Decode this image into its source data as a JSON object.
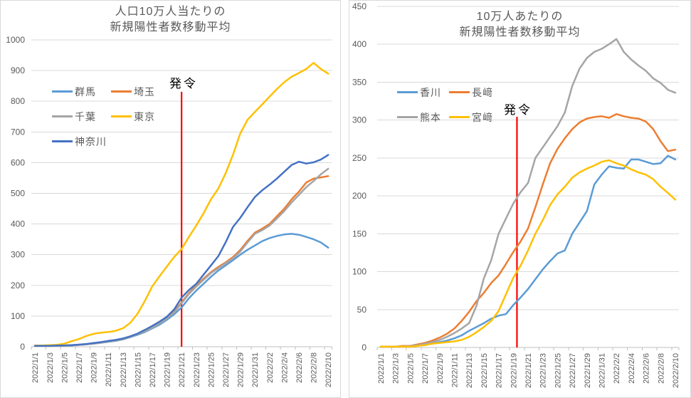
{
  "style": {
    "gridline_color": "#D9D9D9",
    "axis_color": "#BFBFBF",
    "axis_text_color": "#595959",
    "title_color": "#595959",
    "decree_line_color": "#FF0000",
    "panel_border_color": "#D9D9D9",
    "background": "#FFFFFF"
  },
  "chart_data": [
    {
      "type": "line",
      "title": "人口10万人当たりの 新規陽性者数移動平均",
      "title_lines": [
        "人口10万人当たりの",
        "新規陽性者数移動平均"
      ],
      "legend_position": "inside-top-left",
      "grid": true,
      "y_axis": {
        "min": 0,
        "max": 1000,
        "step": 100,
        "tick_labels": [
          "0",
          "100",
          "200",
          "300",
          "400",
          "500",
          "600",
          "700",
          "800",
          "900",
          "1000"
        ]
      },
      "x_axis": {
        "tick_labels": [
          "2022/1/1",
          "2022/1/3",
          "2022/1/5",
          "2022/1/7",
          "2022/1/9",
          "2022/1/11",
          "2022/1/13",
          "2022/1/15",
          "2022/1/17",
          "2022/1/19",
          "2022/1/21",
          "2022/1/23",
          "2022/1/25",
          "2022/1/27",
          "2022/1/29",
          "2022/1/31",
          "2022/2/2",
          "2022/2/4",
          "2022/2/6",
          "2022/2/8",
          "2022/2/10"
        ],
        "dates": [
          "2022/1/1",
          "2022/1/2",
          "2022/1/3",
          "2022/1/4",
          "2022/1/5",
          "2022/1/6",
          "2022/1/7",
          "2022/1/8",
          "2022/1/9",
          "2022/1/10",
          "2022/1/11",
          "2022/1/12",
          "2022/1/13",
          "2022/1/14",
          "2022/1/15",
          "2022/1/16",
          "2022/1/17",
          "2022/1/18",
          "2022/1/19",
          "2022/1/20",
          "2022/1/21",
          "2022/1/22",
          "2022/1/23",
          "2022/1/24",
          "2022/1/25",
          "2022/1/26",
          "2022/1/27",
          "2022/1/28",
          "2022/1/29",
          "2022/1/30",
          "2022/1/31",
          "2022/2/1",
          "2022/2/2",
          "2022/2/3",
          "2022/2/4",
          "2022/2/5",
          "2022/2/6",
          "2022/2/7",
          "2022/2/8",
          "2022/2/9",
          "2022/2/10"
        ]
      },
      "vline": {
        "label": "発令",
        "date": "2022/1/21",
        "day_index": 20,
        "color": "#FF0000"
      },
      "series": [
        {
          "name": "群馬",
          "color": "#5B9BD5",
          "values": [
            3,
            3,
            3,
            3,
            4,
            4,
            6,
            8,
            10,
            13,
            16,
            19,
            24,
            31,
            39,
            48,
            60,
            72,
            88,
            106,
            128,
            158,
            183,
            205,
            228,
            248,
            265,
            282,
            300,
            316,
            330,
            344,
            354,
            361,
            366,
            368,
            365,
            358,
            350,
            340,
            323
          ]
        },
        {
          "name": "埼玉",
          "color": "#ED7D31",
          "values": [
            3,
            3,
            3,
            3,
            4,
            5,
            6,
            8,
            11,
            14,
            18,
            21,
            26,
            33,
            42,
            52,
            64,
            78,
            95,
            115,
            145,
            175,
            200,
            222,
            243,
            260,
            275,
            292,
            315,
            345,
            372,
            385,
            400,
            425,
            450,
            480,
            505,
            535,
            548,
            552,
            556
          ]
        },
        {
          "name": "千葉",
          "color": "#A5A5A5",
          "values": [
            3,
            3,
            3,
            3,
            4,
            5,
            6,
            8,
            10,
            13,
            17,
            20,
            25,
            32,
            41,
            50,
            62,
            76,
            92,
            112,
            142,
            172,
            196,
            218,
            240,
            256,
            272,
            288,
            310,
            340,
            368,
            380,
            395,
            418,
            442,
            470,
            495,
            520,
            540,
            562,
            580
          ]
        },
        {
          "name": "東京",
          "color": "#FFC000",
          "values": [
            4,
            4,
            5,
            6,
            10,
            18,
            25,
            35,
            42,
            46,
            48,
            52,
            60,
            78,
            108,
            150,
            197,
            230,
            262,
            293,
            318,
            358,
            395,
            435,
            480,
            515,
            565,
            625,
            695,
            740,
            765,
            790,
            815,
            840,
            862,
            880,
            892,
            905,
            925,
            905,
            890
          ]
        },
        {
          "name": "神奈川",
          "color": "#4472C4",
          "values": [
            3,
            3,
            3,
            4,
            4,
            5,
            7,
            9,
            12,
            15,
            19,
            22,
            27,
            34,
            43,
            55,
            68,
            82,
            98,
            122,
            160,
            185,
            205,
            235,
            265,
            295,
            340,
            390,
            420,
            455,
            488,
            510,
            528,
            548,
            570,
            592,
            603,
            597,
            601,
            610,
            625
          ]
        }
      ]
    },
    {
      "type": "line",
      "title": "10万人あたりの 新規陽性者数移動平均",
      "title_lines": [
        "10万人あたりの",
        "新規陽性者数移動平均"
      ],
      "legend_position": "inside-top-left",
      "grid": true,
      "y_axis": {
        "min": 0,
        "max": 450,
        "step": 50,
        "tick_labels": [
          "0",
          "50",
          "100",
          "150",
          "200",
          "250",
          "300",
          "350",
          "400",
          "450"
        ]
      },
      "x_axis": {
        "tick_labels": [
          "2022/1/1",
          "2022/1/3",
          "2022/1/5",
          "2022/1/7",
          "2022/1/9",
          "2022/1/11",
          "2022/1/13",
          "2022/1/15",
          "2022/1/17",
          "2022/1/19",
          "2022/1/21",
          "2022/1/23",
          "2022/1/25",
          "2022/1/27",
          "2022/1/29",
          "2022/1/31",
          "2022/2/2",
          "2022/2/4",
          "2022/2/6",
          "2022/2/8",
          "2022/2/10"
        ],
        "dates": [
          "2022/1/1",
          "2022/1/2",
          "2022/1/3",
          "2022/1/4",
          "2022/1/5",
          "2022/1/6",
          "2022/1/7",
          "2022/1/8",
          "2022/1/9",
          "2022/1/10",
          "2022/1/11",
          "2022/1/12",
          "2022/1/13",
          "2022/1/14",
          "2022/1/15",
          "2022/1/16",
          "2022/1/17",
          "2022/1/18",
          "2022/1/19",
          "2022/1/20",
          "2022/1/21",
          "2022/1/22",
          "2022/1/23",
          "2022/1/24",
          "2022/1/25",
          "2022/1/26",
          "2022/1/27",
          "2022/1/28",
          "2022/1/29",
          "2022/1/30",
          "2022/1/31",
          "2022/2/1",
          "2022/2/2",
          "2022/2/3",
          "2022/2/4",
          "2022/2/5",
          "2022/2/6",
          "2022/2/7",
          "2022/2/8",
          "2022/2/9",
          "2022/2/10"
        ]
      },
      "vline": {
        "label": "発令",
        "day_index": 18.5,
        "color": "#FF0000"
      },
      "series": [
        {
          "name": "香川",
          "color": "#5B9BD5",
          "values": [
            1,
            1,
            1,
            1,
            2,
            3,
            4,
            5,
            7,
            9,
            12,
            16,
            22,
            27,
            32,
            38,
            42,
            44,
            56,
            66,
            77,
            90,
            103,
            114,
            124,
            128,
            150,
            165,
            180,
            215,
            228,
            239,
            237,
            236,
            248,
            248,
            245,
            242,
            243,
            253,
            248
          ]
        },
        {
          "name": "長﨑",
          "color": "#ED7D31",
          "values": [
            1,
            1,
            1,
            2,
            2,
            4,
            6,
            9,
            13,
            18,
            25,
            35,
            47,
            61,
            72,
            85,
            95,
            110,
            126,
            140,
            157,
            185,
            215,
            243,
            262,
            276,
            288,
            297,
            302,
            304,
            305,
            303,
            308,
            305,
            303,
            302,
            298,
            288,
            272,
            259,
            261
          ]
        },
        {
          "name": "熊本",
          "color": "#A5A5A5",
          "values": [
            1,
            1,
            1,
            1,
            2,
            3,
            5,
            7,
            10,
            14,
            19,
            25,
            32,
            55,
            91,
            115,
            150,
            170,
            190,
            205,
            217,
            250,
            264,
            278,
            292,
            310,
            345,
            368,
            382,
            390,
            394,
            400,
            407,
            390,
            380,
            372,
            365,
            355,
            349,
            340,
            336
          ]
        },
        {
          "name": "宮﨑",
          "color": "#FFC000",
          "values": [
            1,
            1,
            1,
            1,
            1,
            2,
            3,
            5,
            6,
            7,
            8,
            10,
            14,
            20,
            27,
            35,
            48,
            70,
            92,
            108,
            128,
            150,
            168,
            188,
            202,
            212,
            224,
            231,
            236,
            240,
            245,
            247,
            243,
            240,
            235,
            231,
            228,
            222,
            212,
            204,
            195
          ]
        }
      ]
    }
  ]
}
